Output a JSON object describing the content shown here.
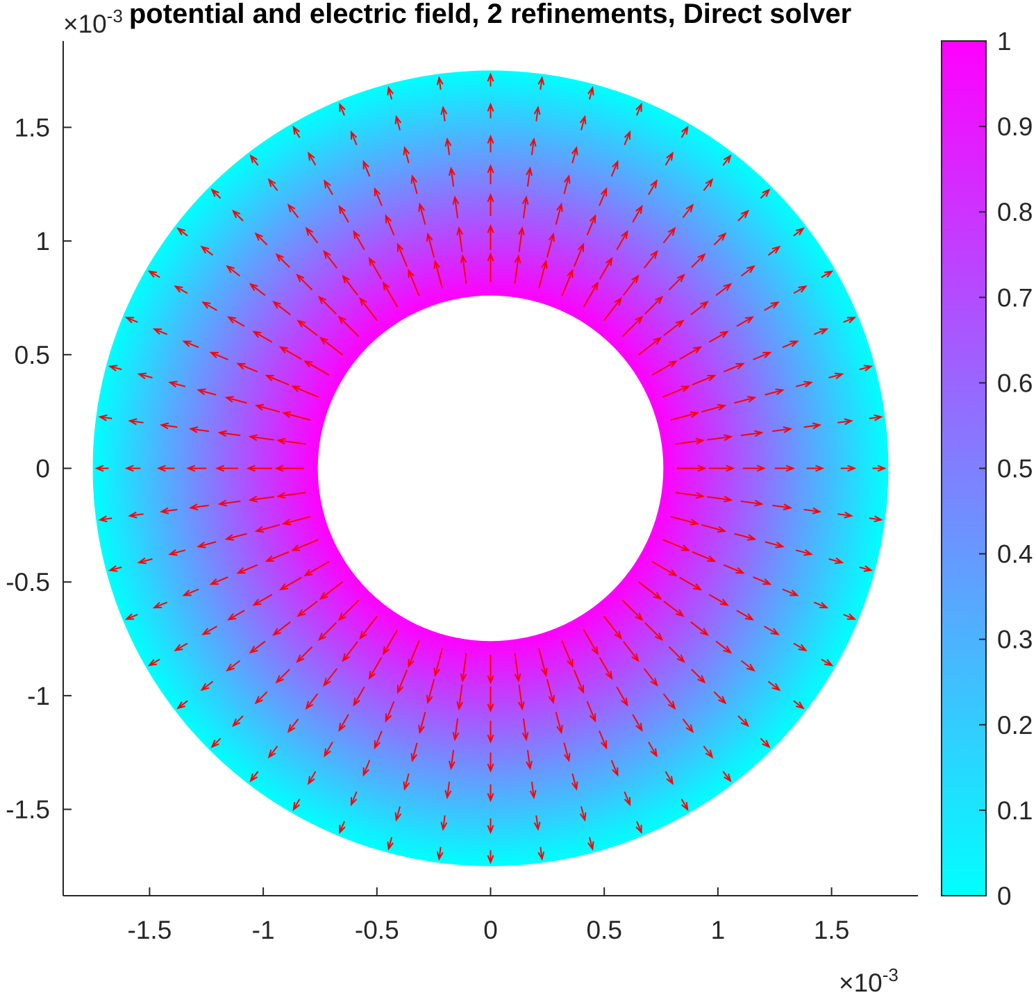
{
  "chart_data": {
    "type": "quiver-on-pseudocolor",
    "title": "potential and electric field, 2 refinements, Direct solver",
    "domain": {
      "shape": "annulus",
      "center": [
        0,
        0
      ],
      "inner_radius": 0.00076,
      "outer_radius": 0.00175
    },
    "field": {
      "name": "potential",
      "value_at_inner_radius": 1,
      "value_at_outer_radius": 0
    },
    "quiver": {
      "direction": "radially outward",
      "color": "#ff0000",
      "radial_positions": [
        0.00082,
        0.00096,
        0.00111,
        0.00125,
        0.00139,
        0.00154,
        0.00168
      ],
      "angles_per_ring": 48
    },
    "xaxis": {
      "lim": [
        -0.00188,
        0.00188
      ],
      "ticks": [
        -0.0015,
        -0.001,
        -0.0005,
        0,
        0.0005,
        0.001,
        0.0015
      ],
      "tick_labels": [
        "-1.5",
        "-1",
        "-0.5",
        "0",
        "0.5",
        "1",
        "1.5"
      ],
      "exponent_label": "×10",
      "exponent_power": "-3"
    },
    "yaxis": {
      "lim": [
        -0.00188,
        0.00188
      ],
      "ticks": [
        -0.0015,
        -0.001,
        -0.0005,
        0,
        0.0005,
        0.001,
        0.0015
      ],
      "tick_labels": [
        "-1.5",
        "-1",
        "-0.5",
        "0",
        "0.5",
        "1",
        "1.5"
      ],
      "exponent_label": "×10",
      "exponent_power": "-3"
    },
    "colorbar": {
      "colormap": "cool",
      "color_min": "#00ffff",
      "color_max": "#ff00ff",
      "lim": [
        0,
        1
      ],
      "ticks": [
        0,
        0.1,
        0.2,
        0.3,
        0.4,
        0.5,
        0.6,
        0.7,
        0.8,
        0.9,
        1
      ],
      "tick_labels": [
        "0",
        "0.1",
        "0.2",
        "0.3",
        "0.4",
        "0.5",
        "0.6",
        "0.7",
        "0.8",
        "0.9",
        "1"
      ]
    },
    "grid": false
  }
}
